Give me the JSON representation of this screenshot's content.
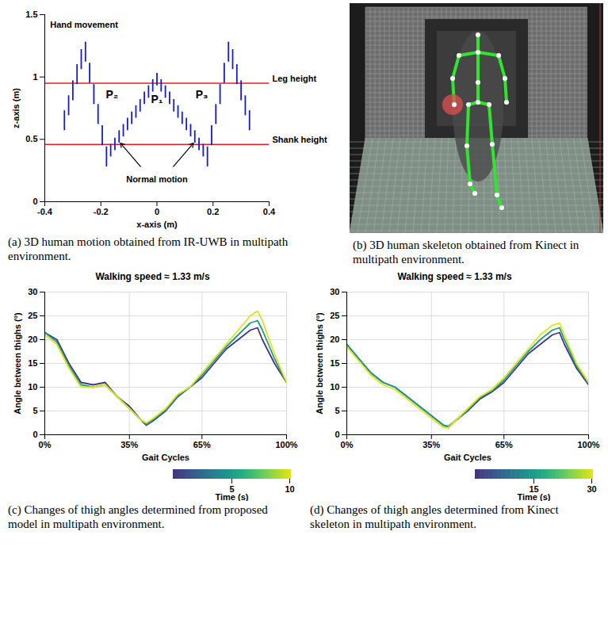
{
  "chart_data": [
    {
      "type": "range_bar",
      "caption": "(a) 3D human motion obtained from IR-UWB in multipath environment.",
      "xlabel": "x-axis (m)",
      "ylabel": "z-axis (m)",
      "xlim": [
        -0.4,
        0.4
      ],
      "xticks": [
        -0.4,
        -0.2,
        0,
        0.2,
        0.4
      ],
      "ylim": [
        0,
        1.5
      ],
      "yticks": [
        0,
        0.5,
        1,
        1.5
      ],
      "color": "#1a1acd",
      "x": [
        -0.33,
        -0.315,
        -0.3,
        -0.285,
        -0.27,
        -0.255,
        -0.24,
        -0.225,
        -0.21,
        -0.195,
        -0.18,
        -0.165,
        -0.15,
        -0.135,
        -0.12,
        -0.105,
        -0.09,
        -0.075,
        -0.06,
        -0.045,
        -0.03,
        -0.015,
        0,
        0.015,
        0.03,
        0.045,
        0.06,
        0.075,
        0.09,
        0.105,
        0.12,
        0.135,
        0.15,
        0.165,
        0.18,
        0.195,
        0.21,
        0.225,
        0.24,
        0.255,
        0.27,
        0.285,
        0.3,
        0.315,
        0.33
      ],
      "z_low": [
        0.57,
        0.69,
        0.81,
        0.94,
        1.06,
        1.12,
        0.95,
        0.78,
        0.62,
        0.45,
        0.28,
        0.36,
        0.41,
        0.47,
        0.52,
        0.57,
        0.62,
        0.67,
        0.72,
        0.78,
        0.83,
        0.88,
        0.93,
        0.88,
        0.83,
        0.78,
        0.72,
        0.67,
        0.62,
        0.57,
        0.52,
        0.47,
        0.41,
        0.36,
        0.28,
        0.45,
        0.62,
        0.78,
        0.95,
        1.12,
        1.06,
        0.94,
        0.81,
        0.69,
        0.57
      ],
      "z_high": [
        0.73,
        0.85,
        0.97,
        1.1,
        1.22,
        1.28,
        1.11,
        0.94,
        0.78,
        0.61,
        0.44,
        0.46,
        0.51,
        0.57,
        0.62,
        0.67,
        0.72,
        0.77,
        0.82,
        0.88,
        0.93,
        0.98,
        1.03,
        0.98,
        0.93,
        0.88,
        0.82,
        0.77,
        0.72,
        0.67,
        0.62,
        0.57,
        0.51,
        0.46,
        0.44,
        0.61,
        0.78,
        0.94,
        1.11,
        1.28,
        1.22,
        1.1,
        0.97,
        0.85,
        0.73
      ],
      "hlines": [
        {
          "y": 0.95,
          "label": "Leg height",
          "color": "#e02020"
        },
        {
          "y": 0.46,
          "label": "Shank height",
          "color": "#e02020"
        }
      ],
      "annotations": [
        {
          "text": "Hand movement",
          "x": -0.26,
          "y": 1.42
        },
        {
          "text": "P₁",
          "x": 0,
          "y": 0.82
        },
        {
          "text": "P₂",
          "x": -0.16,
          "y": 0.86
        },
        {
          "text": "P₃",
          "x": 0.16,
          "y": 0.86
        },
        {
          "text": "Normal motion",
          "x": 0,
          "y": 0.18,
          "points_to": [
            [
              -0.13,
              0.47
            ],
            [
              0.13,
              0.47
            ]
          ]
        }
      ]
    },
    {
      "type": "image",
      "caption": "(b) 3D human skeleton obtained from Kinect in multipath environment."
    },
    {
      "type": "line",
      "title": "Walking speed ≈ 1.33 m/s",
      "caption": "(c) Changes of thigh angles determined from proposed model in multipath environment.",
      "xlabel": "Gait Cycles",
      "ylabel": "Angle between thighs (°)",
      "zlabel": "Time (s)",
      "xlim": [
        0,
        100
      ],
      "xticks": [
        {
          "value": 0,
          "label": "0%"
        },
        {
          "value": 35,
          "label": "35%"
        },
        {
          "value": 65,
          "label": "65%"
        },
        {
          "value": 100,
          "label": "100%"
        }
      ],
      "ylim": [
        0,
        30
      ],
      "yticks": [
        0,
        5,
        10,
        15,
        20,
        25,
        30
      ],
      "zlim": [
        0,
        10
      ],
      "zticks": [
        5,
        10
      ],
      "x": [
        0,
        5,
        10,
        15,
        20,
        25,
        30,
        35,
        40,
        42,
        45,
        50,
        55,
        60,
        65,
        70,
        75,
        80,
        85,
        88,
        90,
        95,
        100
      ],
      "series": [
        {
          "time": 0,
          "values": [
            21.5,
            20,
            15,
            11,
            10.5,
            11,
            8,
            6,
            3,
            2,
            3,
            5,
            8,
            10,
            12,
            15,
            18,
            20,
            22,
            22.5,
            20,
            15,
            11
          ]
        },
        {
          "time": 5,
          "values": [
            21.5,
            19.5,
            14.5,
            10.5,
            10,
            10.5,
            8,
            5.5,
            3,
            2.2,
            3.2,
            5.2,
            8.2,
            10,
            12.5,
            15.5,
            18.5,
            21,
            23.5,
            24,
            22,
            16,
            11
          ]
        },
        {
          "time": 10,
          "values": [
            21,
            19,
            14,
            10,
            10,
            10.5,
            8,
            5.5,
            3,
            2.5,
            3.5,
            5.5,
            8.5,
            10,
            13,
            16,
            19,
            22,
            25,
            26,
            24,
            17,
            11
          ]
        }
      ]
    },
    {
      "type": "line",
      "title": "Walking speed ≈ 1.33 m/s",
      "caption": "(d) Changes of thigh angles determined from Kinect skeleton in multipath environment.",
      "xlabel": "Gait Cycles",
      "ylabel": "Angle between thighs (°)",
      "zlabel": "Time (s)",
      "xlim": [
        0,
        100
      ],
      "xticks": [
        {
          "value": 0,
          "label": "0%"
        },
        {
          "value": 35,
          "label": "35%"
        },
        {
          "value": 65,
          "label": "65%"
        },
        {
          "value": 100,
          "label": "100%"
        }
      ],
      "ylim": [
        0,
        30
      ],
      "yticks": [
        0,
        5,
        10,
        15,
        20,
        25,
        30
      ],
      "zlim": [
        0,
        30
      ],
      "zticks": [
        15,
        30
      ],
      "x": [
        0,
        5,
        10,
        15,
        20,
        25,
        30,
        35,
        40,
        42,
        45,
        50,
        55,
        60,
        65,
        70,
        75,
        80,
        85,
        88,
        90,
        95,
        100
      ],
      "series": [
        {
          "time": 0,
          "values": [
            19,
            16,
            13,
            11,
            10,
            8,
            6,
            4,
            2,
            1.5,
            3,
            5,
            7.5,
            9,
            11,
            14,
            17,
            19,
            21,
            21.5,
            19,
            14,
            10.5
          ]
        },
        {
          "time": 15,
          "values": [
            19,
            16,
            13,
            11,
            10,
            8,
            6,
            4,
            2,
            1.8,
            3,
            5.2,
            7.8,
            9.2,
            11.5,
            14.5,
            17.5,
            20,
            22,
            22.5,
            20,
            14.5,
            10.8
          ]
        },
        {
          "time": 30,
          "values": [
            18.5,
            15.5,
            12.5,
            10.5,
            9.5,
            7.5,
            5.5,
            3.5,
            1.5,
            1.5,
            3,
            5.5,
            8,
            9.5,
            12,
            15,
            18,
            21,
            23,
            23.5,
            21,
            15,
            11
          ]
        }
      ]
    }
  ]
}
